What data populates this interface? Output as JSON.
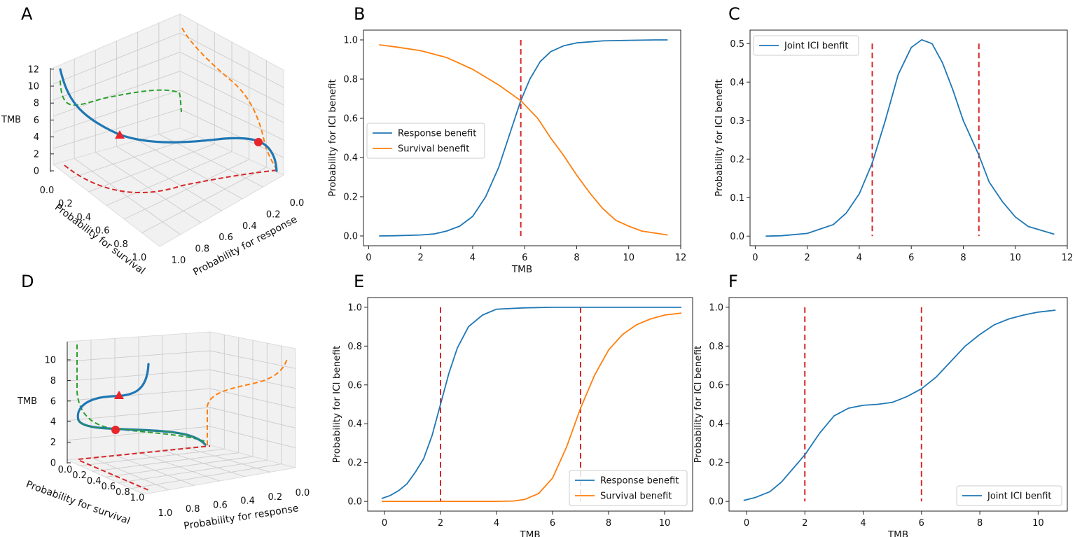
{
  "colors": {
    "response": "#1f77b4",
    "survival": "#ff7f0e",
    "threshold": "#d62728",
    "projection_green": "#2ca02c",
    "projection_red": "#d62728",
    "projection_orange": "#ff7f0e",
    "marker": "#e8262a",
    "frame": "#222222",
    "grid": "#cccccc",
    "pane": "#f1f1f1"
  },
  "panels": {
    "A": {
      "letter": "A",
      "zlabel": "TMB",
      "xlabel": "Probability for survival",
      "ylabel": "Probability for response",
      "zticks": [
        "0",
        "2",
        "4",
        "6",
        "8",
        "10",
        "12"
      ],
      "xticks": [
        "0.0",
        "0.2",
        "0.4",
        "0.6",
        "0.8",
        "1.0"
      ],
      "yticks": [
        "1.0",
        "0.8",
        "0.6",
        "0.4",
        "0.2",
        "0.0"
      ]
    },
    "B": {
      "letter": "B"
    },
    "C": {
      "letter": "C"
    },
    "D": {
      "letter": "D",
      "zlabel": "TMB",
      "xlabel": "Probability for survival",
      "ylabel": "Probability for response",
      "zticks": [
        "0",
        "2",
        "4",
        "6",
        "8",
        "10"
      ],
      "xticks": [
        "0.0",
        "0.2",
        "0.4",
        "0.6",
        "0.8",
        "1.0"
      ],
      "yticks": [
        "1.0",
        "0.8",
        "0.6",
        "0.4",
        "0.2",
        "0.0"
      ]
    },
    "E": {
      "letter": "E"
    },
    "F": {
      "letter": "F"
    }
  },
  "chart_data": [
    {
      "panel": "B",
      "type": "line",
      "xlabel": "TMB",
      "ylabel": "Probability for ICI benefit",
      "xlim": [
        -0.2,
        12
      ],
      "ylim": [
        -0.05,
        1.05
      ],
      "xticks": [
        0,
        2,
        4,
        6,
        8,
        10,
        12
      ],
      "yticks": [
        0.0,
        0.2,
        0.4,
        0.6,
        0.8,
        1.0
      ],
      "vlines": [
        5.85
      ],
      "legend_position": "center-left",
      "series": [
        {
          "name": "Response benefit",
          "color": "#1f77b4",
          "x": [
            0.4,
            1.0,
            2.0,
            2.5,
            3.0,
            3.5,
            4.0,
            4.5,
            5.0,
            5.5,
            5.85,
            6.2,
            6.6,
            7.0,
            7.5,
            8.0,
            8.5,
            9.0,
            10.0,
            11.0,
            11.5
          ],
          "y": [
            0.0,
            0.001,
            0.005,
            0.01,
            0.025,
            0.05,
            0.1,
            0.2,
            0.35,
            0.55,
            0.69,
            0.8,
            0.89,
            0.94,
            0.97,
            0.985,
            0.99,
            0.995,
            0.998,
            1.0,
            1.0
          ]
        },
        {
          "name": "Survival benefit",
          "color": "#ff7f0e",
          "x": [
            0.4,
            1.0,
            2.0,
            3.0,
            4.0,
            5.0,
            5.85,
            6.5,
            7.0,
            7.5,
            8.0,
            8.5,
            9.0,
            9.5,
            10.0,
            10.5,
            11.5
          ],
          "y": [
            0.975,
            0.965,
            0.945,
            0.91,
            0.85,
            0.77,
            0.69,
            0.6,
            0.5,
            0.41,
            0.31,
            0.22,
            0.14,
            0.08,
            0.05,
            0.025,
            0.005
          ]
        }
      ]
    },
    {
      "panel": "C",
      "type": "line",
      "xlabel": "",
      "ylabel": "Probability for ICI benefit",
      "xlim": [
        -0.2,
        12
      ],
      "ylim": [
        -0.025,
        0.535
      ],
      "xticks": [
        0,
        2,
        4,
        6,
        8,
        10,
        12
      ],
      "yticks": [
        0.0,
        0.1,
        0.2,
        0.3,
        0.4,
        0.5
      ],
      "vlines": [
        4.5,
        8.6
      ],
      "legend_position": "top-left",
      "series": [
        {
          "name": "Joint ICI benfit",
          "color": "#1f77b4",
          "x": [
            0.4,
            1.0,
            2.0,
            3.0,
            3.5,
            4.0,
            4.5,
            5.0,
            5.5,
            6.0,
            6.4,
            6.8,
            7.2,
            7.6,
            8.0,
            8.6,
            9.0,
            9.5,
            10.0,
            10.5,
            11.5
          ],
          "y": [
            0.0,
            0.001,
            0.007,
            0.03,
            0.06,
            0.11,
            0.19,
            0.3,
            0.42,
            0.49,
            0.51,
            0.5,
            0.45,
            0.38,
            0.3,
            0.21,
            0.14,
            0.09,
            0.05,
            0.025,
            0.005
          ]
        }
      ]
    },
    {
      "panel": "E",
      "type": "line",
      "xlabel": "TMB",
      "ylabel": "Probability for ICI benefit",
      "xlim": [
        -0.6,
        11.0
      ],
      "ylim": [
        -0.05,
        1.05
      ],
      "xticks": [
        0,
        2,
        4,
        6,
        8,
        10
      ],
      "yticks": [
        0.0,
        0.2,
        0.4,
        0.6,
        0.8,
        1.0
      ],
      "vlines": [
        2.0,
        7.0
      ],
      "legend_position": "bottom-right",
      "series": [
        {
          "name": "Response benefit",
          "color": "#1f77b4",
          "x": [
            -0.1,
            0.2,
            0.5,
            0.8,
            1.1,
            1.4,
            1.7,
            2.0,
            2.3,
            2.6,
            3.0,
            3.5,
            4.0,
            5.0,
            6.0,
            8.0,
            10.6
          ],
          "y": [
            0.015,
            0.03,
            0.055,
            0.09,
            0.15,
            0.22,
            0.34,
            0.5,
            0.66,
            0.79,
            0.9,
            0.96,
            0.99,
            0.997,
            1.0,
            1.0,
            1.0
          ]
        },
        {
          "name": "Survival benefit",
          "color": "#ff7f0e",
          "x": [
            -0.1,
            2.0,
            4.0,
            4.6,
            5.0,
            5.5,
            6.0,
            6.5,
            7.0,
            7.5,
            8.0,
            8.5,
            9.0,
            9.5,
            10.0,
            10.6
          ],
          "y": [
            0.0,
            0.0,
            0.0,
            0.002,
            0.01,
            0.04,
            0.12,
            0.28,
            0.48,
            0.65,
            0.78,
            0.86,
            0.91,
            0.94,
            0.96,
            0.97
          ]
        }
      ]
    },
    {
      "panel": "F",
      "type": "line",
      "xlabel": "TMB",
      "ylabel": "Probability for ICI benefit",
      "xlim": [
        -0.6,
        11.0
      ],
      "ylim": [
        -0.05,
        1.05
      ],
      "xticks": [
        0,
        2,
        4,
        6,
        8,
        10
      ],
      "yticks": [
        0.0,
        0.2,
        0.4,
        0.6,
        0.8,
        1.0
      ],
      "vlines": [
        2.0,
        6.0
      ],
      "legend_position": "bottom-right",
      "series": [
        {
          "name": "Joint ICI benfit",
          "color": "#1f77b4",
          "x": [
            -0.1,
            0.3,
            0.8,
            1.2,
            1.6,
            2.0,
            2.5,
            3.0,
            3.5,
            4.0,
            4.5,
            5.0,
            5.5,
            6.0,
            6.5,
            7.0,
            7.5,
            8.0,
            8.5,
            9.0,
            9.5,
            10.0,
            10.6
          ],
          "y": [
            0.005,
            0.02,
            0.05,
            0.1,
            0.17,
            0.24,
            0.35,
            0.44,
            0.48,
            0.495,
            0.5,
            0.51,
            0.54,
            0.58,
            0.64,
            0.72,
            0.8,
            0.86,
            0.91,
            0.94,
            0.96,
            0.975,
            0.985
          ]
        }
      ]
    }
  ]
}
